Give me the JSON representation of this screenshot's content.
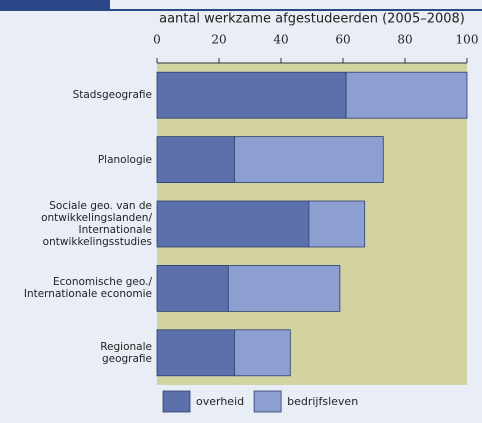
{
  "chart_data": {
    "type": "stacked-barh",
    "title": "aantal werkzame afgestudeerden (2005–2008)",
    "categories": [
      "Stadsgeografie",
      "Planologie",
      "Sociale geo. van de\nontwikkelingslanden/\nInternationale\nontwikkelingsstudies",
      "Economische geo./\nInternationale economie",
      "Regionale\ngeografie"
    ],
    "series": [
      {
        "name": "overheid",
        "color": "#5c71ab",
        "values": [
          61,
          25,
          49,
          23,
          25
        ]
      },
      {
        "name": "bedrijfsleven",
        "color": "#8d9ed0",
        "values": [
          39,
          48,
          18,
          36,
          18
        ]
      }
    ],
    "xlim": [
      0,
      100
    ],
    "xticks": [
      0,
      20,
      40,
      60,
      80,
      100
    ]
  }
}
